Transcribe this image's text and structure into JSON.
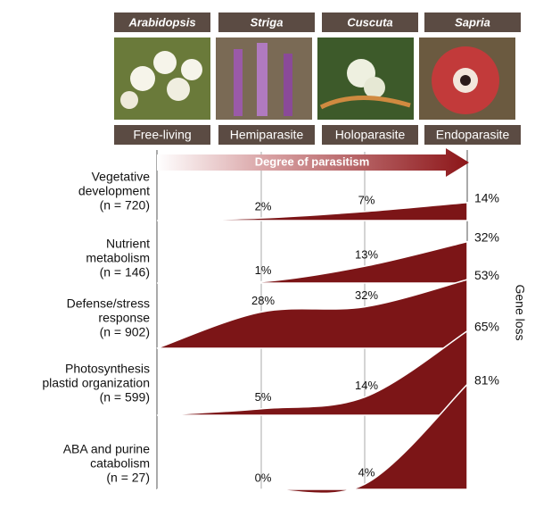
{
  "species": [
    "Arabidopsis",
    "Striga",
    "Cuscuta",
    "Sapria"
  ],
  "lifestyles": [
    "Free-living",
    "Hemiparasite",
    "Holoparasite",
    "Endoparasite"
  ],
  "axis_label": "Degree of parasitism",
  "side_label": "Gene loss",
  "rows": [
    {
      "label": [
        "Vegetative",
        "development",
        "(n = 720)"
      ],
      "values": [
        2,
        7,
        14
      ],
      "value_labels": [
        "2%",
        "7%",
        "14%"
      ]
    },
    {
      "label": [
        "Nutrient",
        "metabolism",
        "(n = 146)"
      ],
      "values": [
        1,
        13,
        32
      ],
      "value_labels": [
        "1%",
        "13%",
        "32%"
      ]
    },
    {
      "label": [
        "Defense/stress",
        "response",
        "(n = 902)"
      ],
      "values": [
        28,
        32,
        53
      ],
      "value_labels": [
        "28%",
        "32%",
        "53%"
      ]
    },
    {
      "label": [
        "Photosynthesis",
        "plastid organization",
        "(n = 599)"
      ],
      "values": [
        5,
        14,
        65
      ],
      "value_labels": [
        "5%",
        "14%",
        "65%"
      ]
    },
    {
      "label": [
        "ABA and purine",
        "catabolism",
        "(n = 27)"
      ],
      "values": [
        0,
        4,
        81
      ],
      "value_labels": [
        "0%",
        "4%",
        "81%"
      ]
    }
  ]
}
